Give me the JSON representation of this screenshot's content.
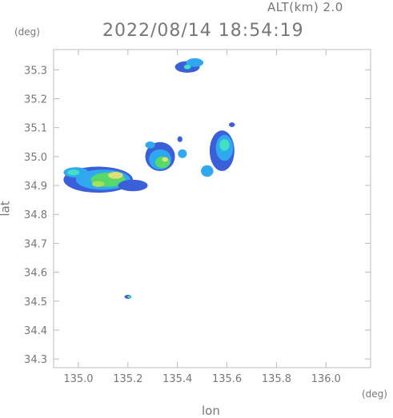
{
  "header": {
    "altitude": "ALT(km)  2.0",
    "timestamp": "2022/08/14  18:54:19"
  },
  "colors": {
    "frame": "#bbbbbb",
    "text": "#777777",
    "scale": [
      "#3a5fd8",
      "#2fa8f0",
      "#3fe0c4",
      "#58d86a",
      "#a8e05a",
      "#e0e070"
    ]
  },
  "chart_data": {
    "type": "heatmap",
    "xlabel": "lon",
    "ylabel": "lat",
    "x_unit": "(deg)",
    "y_unit": "(deg)",
    "xlim": [
      134.9,
      136.18
    ],
    "ylim": [
      34.27,
      35.37
    ],
    "xticks": [
      {
        "value": 135.0,
        "label": "135.0"
      },
      {
        "value": 135.2,
        "label": "135.2"
      },
      {
        "value": 135.4,
        "label": "135.4"
      },
      {
        "value": 135.6,
        "label": "135.6"
      },
      {
        "value": 135.8,
        "label": "135.8"
      },
      {
        "value": 136.0,
        "label": "136.0"
      }
    ],
    "yticks": [
      {
        "value": 34.3,
        "label": "34.3"
      },
      {
        "value": 34.4,
        "label": "34.4"
      },
      {
        "value": 34.5,
        "label": "34.5"
      },
      {
        "value": 34.6,
        "label": "34.6"
      },
      {
        "value": 34.7,
        "label": "34.7"
      },
      {
        "value": 34.8,
        "label": "34.8"
      },
      {
        "value": 34.9,
        "label": "34.9"
      },
      {
        "value": 35.0,
        "label": "35.0"
      },
      {
        "value": 35.1,
        "label": "35.1"
      },
      {
        "value": 35.2,
        "label": "35.2"
      },
      {
        "value": 35.3,
        "label": "35.3"
      }
    ],
    "echoes": [
      {
        "lon": 135.08,
        "lat": 34.92,
        "rlon": 0.14,
        "rlat": 0.045,
        "level": 0
      },
      {
        "lon": 135.1,
        "lat": 34.92,
        "rlon": 0.11,
        "rlat": 0.035,
        "level": 1
      },
      {
        "lon": 135.12,
        "lat": 34.92,
        "rlon": 0.07,
        "rlat": 0.025,
        "level": 3
      },
      {
        "lon": 135.15,
        "lat": 34.935,
        "rlon": 0.03,
        "rlat": 0.012,
        "level": 5
      },
      {
        "lon": 135.08,
        "lat": 34.905,
        "rlon": 0.025,
        "rlat": 0.01,
        "level": 4
      },
      {
        "lon": 134.99,
        "lat": 34.945,
        "rlon": 0.05,
        "rlat": 0.018,
        "level": 1
      },
      {
        "lon": 134.98,
        "lat": 34.945,
        "rlon": 0.025,
        "rlat": 0.01,
        "level": 2
      },
      {
        "lon": 135.22,
        "lat": 34.9,
        "rlon": 0.06,
        "rlat": 0.02,
        "level": 0
      },
      {
        "lon": 135.33,
        "lat": 35.0,
        "rlon": 0.06,
        "rlat": 0.05,
        "level": 0
      },
      {
        "lon": 135.33,
        "lat": 34.99,
        "rlon": 0.045,
        "rlat": 0.035,
        "level": 1
      },
      {
        "lon": 135.34,
        "lat": 34.98,
        "rlon": 0.03,
        "rlat": 0.02,
        "level": 3
      },
      {
        "lon": 135.35,
        "lat": 34.99,
        "rlon": 0.012,
        "rlat": 0.008,
        "level": 5
      },
      {
        "lon": 135.29,
        "lat": 35.04,
        "rlon": 0.02,
        "rlat": 0.012,
        "level": 1
      },
      {
        "lon": 135.42,
        "lat": 35.01,
        "rlon": 0.018,
        "rlat": 0.015,
        "level": 1
      },
      {
        "lon": 135.41,
        "lat": 35.06,
        "rlon": 0.01,
        "rlat": 0.01,
        "level": 0
      },
      {
        "lon": 135.58,
        "lat": 35.02,
        "rlon": 0.05,
        "rlat": 0.07,
        "level": 0
      },
      {
        "lon": 135.59,
        "lat": 35.03,
        "rlon": 0.035,
        "rlat": 0.045,
        "level": 1
      },
      {
        "lon": 135.59,
        "lat": 35.04,
        "rlon": 0.02,
        "rlat": 0.02,
        "level": 2
      },
      {
        "lon": 135.52,
        "lat": 34.95,
        "rlon": 0.025,
        "rlat": 0.02,
        "level": 1
      },
      {
        "lon": 135.62,
        "lat": 35.11,
        "rlon": 0.012,
        "rlat": 0.008,
        "level": 0
      },
      {
        "lon": 135.44,
        "lat": 35.31,
        "rlon": 0.05,
        "rlat": 0.02,
        "level": 0
      },
      {
        "lon": 135.47,
        "lat": 35.325,
        "rlon": 0.035,
        "rlat": 0.015,
        "level": 1
      },
      {
        "lon": 135.44,
        "lat": 35.31,
        "rlon": 0.014,
        "rlat": 0.008,
        "level": 2
      },
      {
        "lon": 135.2,
        "lat": 34.515,
        "rlon": 0.014,
        "rlat": 0.007,
        "level": 0
      },
      {
        "lon": 135.205,
        "lat": 34.515,
        "rlon": 0.007,
        "rlat": 0.004,
        "level": 2
      }
    ]
  }
}
